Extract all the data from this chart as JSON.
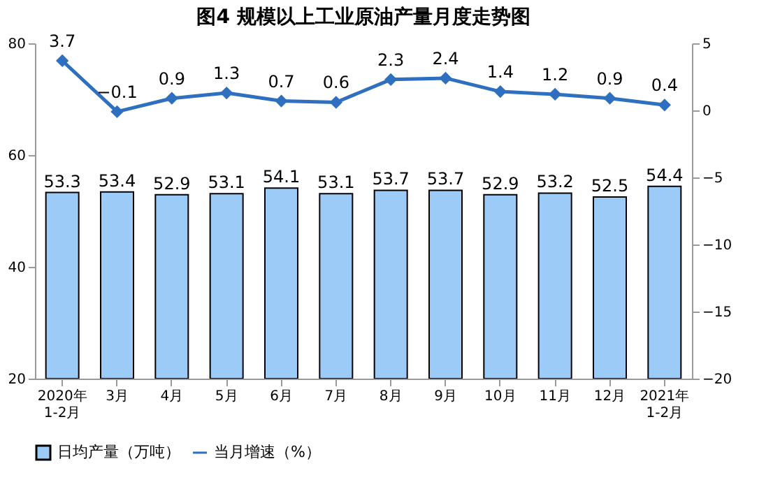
{
  "chart_data": {
    "type": "bar",
    "title": "图4  规模以上工业原油产量月度走势图",
    "categories": [
      "2020年\n1-2月",
      "3月",
      "4月",
      "5月",
      "6月",
      "7月",
      "8月",
      "9月",
      "10月",
      "11月",
      "12月",
      "2021年\n1-2月"
    ],
    "series": [
      {
        "name": "日均产量（万吨）",
        "color": "#9dcbf7",
        "values": [
          53.3,
          53.4,
          52.9,
          53.1,
          54.1,
          53.1,
          53.7,
          53.7,
          52.9,
          53.2,
          52.5,
          54.4
        ]
      },
      {
        "name": "当月增速（%）",
        "type": "line",
        "axis": "y2",
        "color": "#2e6fc0",
        "marker": "diamond",
        "values": [
          3.7,
          -0.1,
          0.9,
          1.3,
          0.7,
          0.6,
          2.3,
          2.4,
          1.4,
          1.2,
          0.9,
          0.4
        ]
      }
    ],
    "ylim": [
      20,
      80
    ],
    "yticks": [
      20,
      40,
      60,
      80
    ],
    "y2lim": [
      -20,
      5
    ],
    "y2ticks": [
      -20,
      -15,
      -10,
      -5,
      0,
      5
    ],
    "data_labels": true,
    "grid": false,
    "legend": "bottom"
  }
}
